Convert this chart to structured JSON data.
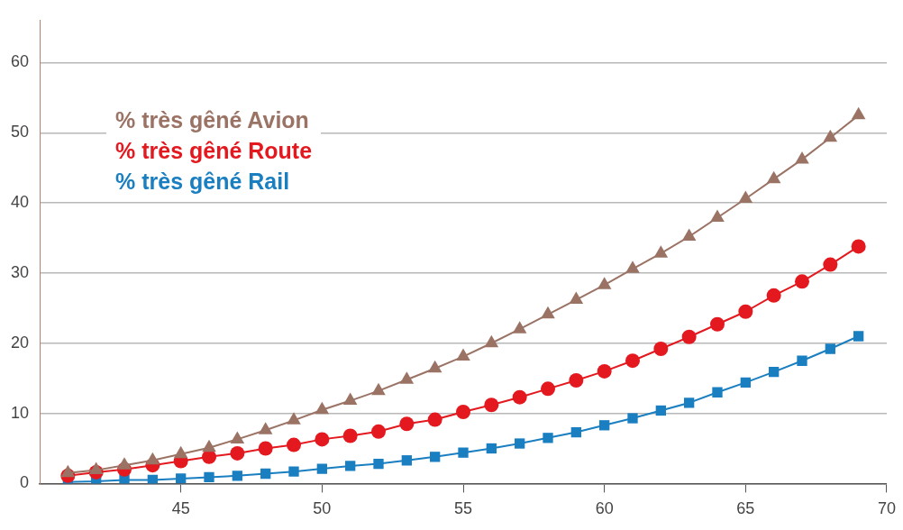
{
  "chart_data": {
    "type": "line",
    "x": [
      41,
      42,
      43,
      44,
      45,
      46,
      47,
      48,
      49,
      50,
      51,
      52,
      53,
      54,
      55,
      56,
      57,
      58,
      59,
      60,
      61,
      62,
      63,
      64,
      65,
      66,
      67,
      68,
      69
    ],
    "series": [
      {
        "name": "% très gêné Avion",
        "color": "#9b7365",
        "marker": "triangle",
        "values": [
          1.5,
          1.9,
          2.6,
          3.3,
          4.2,
          5.1,
          6.3,
          7.6,
          9.0,
          10.5,
          11.8,
          13.2,
          14.8,
          16.4,
          18.1,
          20.0,
          22.0,
          24.1,
          26.2,
          28.3,
          30.6,
          32.8,
          35.2,
          37.9,
          40.6,
          43.4,
          46.2,
          49.3,
          52.5
        ]
      },
      {
        "name": "% très gêné Route",
        "color": "#e3191f",
        "marker": "circle",
        "values": [
          1.1,
          1.6,
          2.0,
          2.6,
          3.2,
          3.8,
          4.3,
          5.0,
          5.5,
          6.3,
          6.8,
          7.4,
          8.5,
          9.1,
          10.2,
          11.2,
          12.3,
          13.5,
          14.7,
          16.0,
          17.5,
          19.2,
          20.9,
          22.7,
          24.5,
          26.8,
          28.8,
          31.2,
          33.8
        ]
      },
      {
        "name": "% très gêné Rail",
        "color": "#1a7fc1",
        "marker": "square",
        "values": [
          0.2,
          0.3,
          0.5,
          0.5,
          0.7,
          0.9,
          1.1,
          1.4,
          1.7,
          2.1,
          2.5,
          2.8,
          3.3,
          3.8,
          4.4,
          5.0,
          5.7,
          6.5,
          7.3,
          8.3,
          9.3,
          10.4,
          11.5,
          13.0,
          14.4,
          15.9,
          17.5,
          19.2,
          21.0
        ]
      }
    ],
    "xlim": [
      40,
      70
    ],
    "xticks": [
      45,
      50,
      55,
      60,
      65,
      70
    ],
    "ylim": [
      0,
      66
    ],
    "yticks": [
      0,
      10,
      20,
      30,
      40,
      50,
      60
    ],
    "grid": "y",
    "legend": "top left",
    "line_style": "solid"
  }
}
